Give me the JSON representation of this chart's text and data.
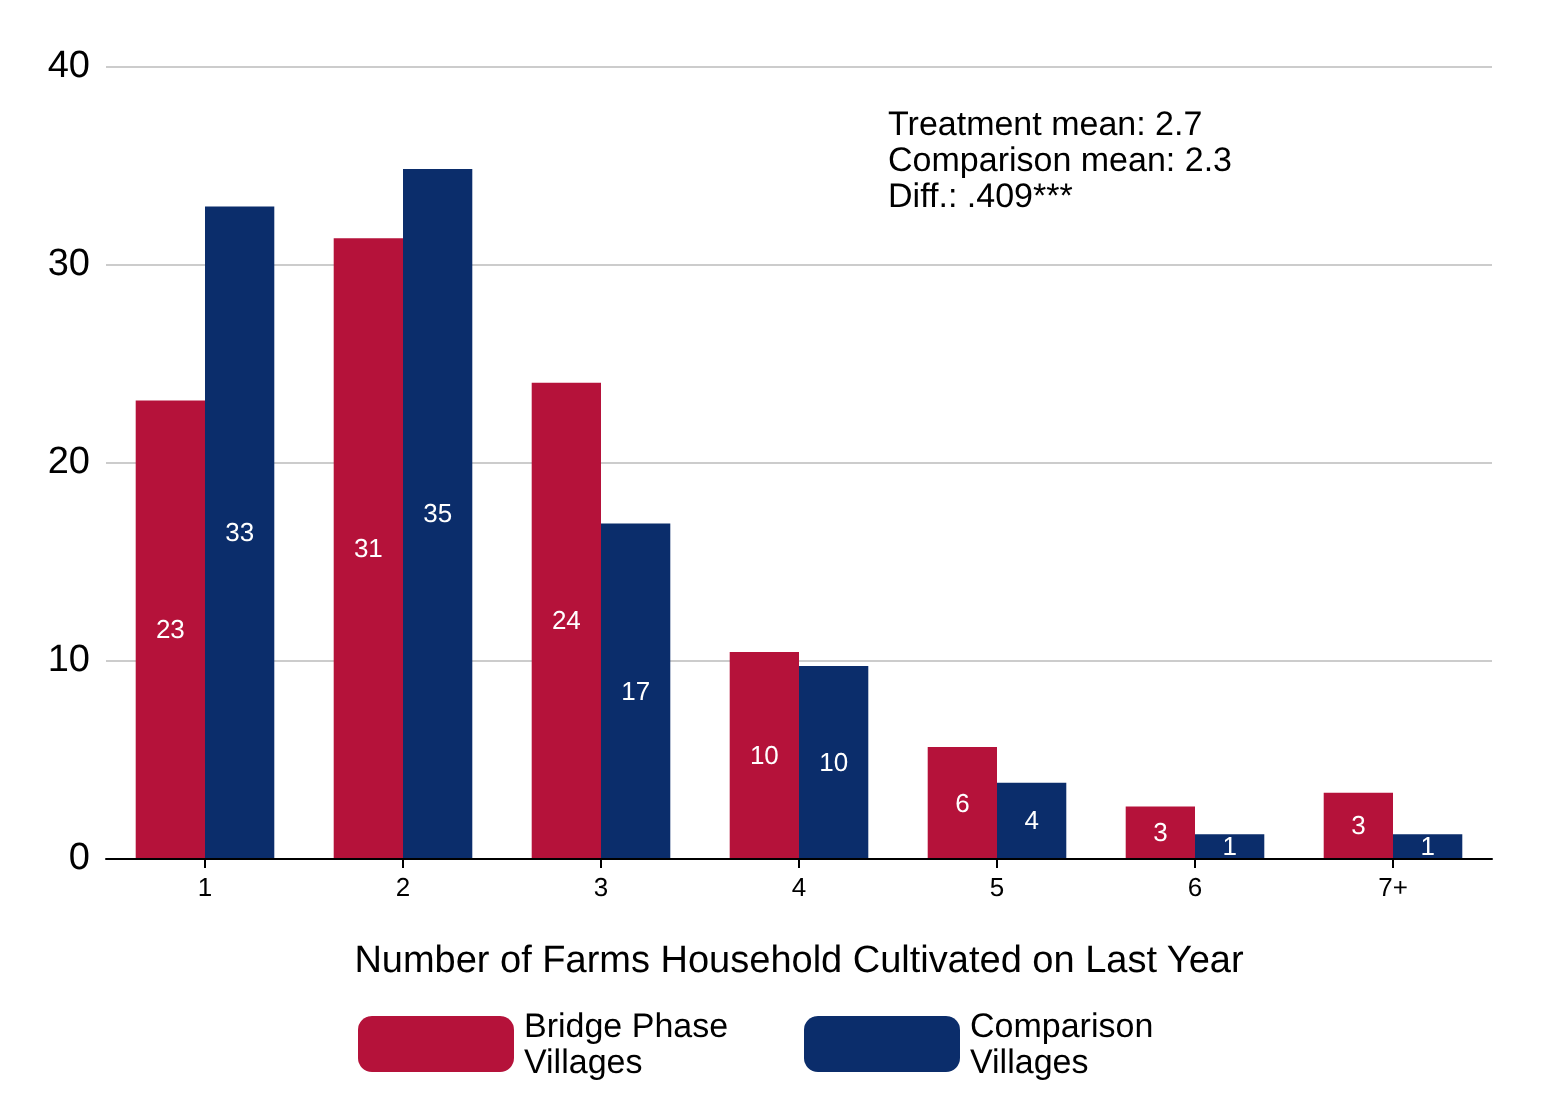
{
  "chart_data": {
    "type": "bar",
    "xlabel": "Number of Farms Household Cultivated on Last Year",
    "categories": [
      "1",
      "2",
      "3",
      "4",
      "5",
      "6",
      "7+"
    ],
    "series": [
      {
        "name": "Bridge Phase Villages",
        "color": "#b5123a",
        "values": [
          23.1,
          31.3,
          24.0,
          10.4,
          5.6,
          2.6,
          3.3
        ],
        "value_labels": [
          "23",
          "31",
          "24",
          "10",
          "6",
          "3",
          "3"
        ]
      },
      {
        "name": "Comparison Villages",
        "color": "#0b2d6b",
        "values": [
          32.9,
          34.8,
          16.9,
          9.7,
          3.8,
          1.2,
          1.2
        ],
        "value_labels": [
          "33",
          "35",
          "17",
          "10",
          "4",
          "1",
          "1"
        ]
      }
    ],
    "ylim": [
      0,
      40
    ],
    "yticks": [
      0,
      10,
      20,
      30,
      40
    ],
    "grid": "y",
    "legend": "bottom",
    "annotations": [
      "Treatment mean: 2.7",
      "Comparison mean: 2.3",
      "Diff.: .409***"
    ]
  }
}
